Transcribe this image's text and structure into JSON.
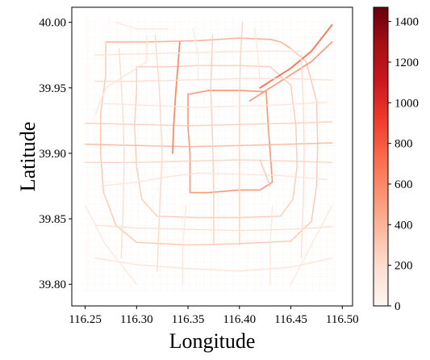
{
  "chart_data": {
    "type": "map",
    "title": "",
    "xlabel": "Longitude",
    "ylabel": "Latitude",
    "xlim": [
      116.237,
      116.51
    ],
    "ylim": [
      39.7835,
      40.0115
    ],
    "xticks": [
      116.25,
      116.3,
      116.35,
      116.4,
      116.45,
      116.5
    ],
    "xtick_labels": [
      "116.25",
      "116.30",
      "116.35",
      "116.40",
      "116.45",
      "116.50"
    ],
    "yticks": [
      39.8,
      39.85,
      39.9,
      39.95,
      40.0
    ],
    "ytick_labels": [
      "39.80",
      "39.85",
      "39.90",
      "39.95",
      "40.00"
    ],
    "colorbar": {
      "cmap": "Reds",
      "vmin": 0,
      "vmax": 1470,
      "ticks": [
        0,
        200,
        400,
        600,
        800,
        1000,
        1200,
        1400
      ],
      "tick_labels": [
        "0",
        "200",
        "400",
        "600",
        "800",
        "1000",
        "1200",
        "1400"
      ]
    },
    "roads": [
      {
        "value": 420,
        "points": [
          [
            116.27,
            39.985
          ],
          [
            116.31,
            39.985
          ],
          [
            116.36,
            39.986
          ],
          [
            116.4,
            39.988
          ],
          [
            116.43,
            39.987
          ]
        ]
      },
      {
        "value": 420,
        "points": [
          [
            116.43,
            39.987
          ],
          [
            116.44,
            39.985
          ],
          [
            116.45,
            39.98
          ]
        ]
      },
      {
        "value": 300,
        "points": [
          [
            116.27,
            39.985
          ],
          [
            116.27,
            39.96
          ],
          [
            116.265,
            39.93
          ],
          [
            116.265,
            39.9
          ],
          [
            116.268,
            39.87
          ],
          [
            116.28,
            39.845
          ],
          [
            116.3,
            39.832
          ],
          [
            116.35,
            39.83
          ],
          [
            116.4,
            39.831
          ],
          [
            116.45,
            39.833
          ],
          [
            116.47,
            39.848
          ],
          [
            116.475,
            39.875
          ],
          [
            116.476,
            39.907
          ],
          [
            116.475,
            39.94
          ],
          [
            116.465,
            39.97
          ],
          [
            116.45,
            39.98
          ]
        ]
      },
      {
        "value": 280,
        "points": [
          [
            116.3,
            39.966
          ],
          [
            116.33,
            39.966
          ],
          [
            116.36,
            39.967
          ],
          [
            116.4,
            39.967
          ],
          [
            116.43,
            39.966
          ],
          [
            116.45,
            39.952
          ],
          [
            116.455,
            39.92
          ],
          [
            116.456,
            39.89
          ],
          [
            116.452,
            39.865
          ],
          [
            116.44,
            39.852
          ],
          [
            116.4,
            39.851
          ],
          [
            116.36,
            39.851
          ],
          [
            116.32,
            39.852
          ],
          [
            116.305,
            39.865
          ],
          [
            116.3,
            39.89
          ],
          [
            116.298,
            39.92
          ],
          [
            116.3,
            39.95
          ],
          [
            116.3,
            39.966
          ]
        ]
      },
      {
        "value": 520,
        "points": [
          [
            116.35,
            39.945
          ],
          [
            116.37,
            39.948
          ],
          [
            116.4,
            39.948
          ],
          [
            116.426,
            39.947
          ],
          [
            116.428,
            39.92
          ],
          [
            116.43,
            39.9
          ],
          [
            116.432,
            39.878
          ],
          [
            116.42,
            39.872
          ],
          [
            116.4,
            39.872
          ],
          [
            116.37,
            39.87
          ],
          [
            116.352,
            39.87
          ],
          [
            116.352,
            39.9
          ],
          [
            116.35,
            39.92
          ],
          [
            116.35,
            39.945
          ]
        ]
      },
      {
        "value": 360,
        "points": [
          [
            116.25,
            39.907
          ],
          [
            116.3,
            39.906
          ],
          [
            116.35,
            39.905
          ],
          [
            116.4,
            39.906
          ],
          [
            116.45,
            39.907
          ],
          [
            116.49,
            39.908
          ]
        ]
      },
      {
        "value": 260,
        "points": [
          [
            116.25,
            39.923
          ],
          [
            116.3,
            39.922
          ],
          [
            116.35,
            39.921
          ],
          [
            116.4,
            39.922
          ],
          [
            116.45,
            39.923
          ],
          [
            116.49,
            39.924
          ]
        ]
      },
      {
        "value": 240,
        "points": [
          [
            116.25,
            39.893
          ],
          [
            116.3,
            39.893
          ],
          [
            116.35,
            39.894
          ],
          [
            116.4,
            39.895
          ],
          [
            116.45,
            39.894
          ],
          [
            116.49,
            39.893
          ]
        ]
      },
      {
        "value": 700,
        "points": [
          [
            116.42,
            39.95
          ],
          [
            116.45,
            39.965
          ],
          [
            116.47,
            39.978
          ],
          [
            116.49,
            39.998
          ]
        ]
      },
      {
        "value": 520,
        "points": [
          [
            116.41,
            39.94
          ],
          [
            116.44,
            39.955
          ],
          [
            116.47,
            39.97
          ],
          [
            116.49,
            39.985
          ]
        ]
      },
      {
        "value": 600,
        "points": [
          [
            116.335,
            39.9
          ],
          [
            116.336,
            39.92
          ],
          [
            116.338,
            39.945
          ],
          [
            116.34,
            39.965
          ],
          [
            116.342,
            39.985
          ]
        ]
      },
      {
        "value": 240,
        "points": [
          [
            116.4,
            39.83
          ],
          [
            116.4,
            39.86
          ],
          [
            116.4,
            39.9
          ],
          [
            116.4,
            39.94
          ],
          [
            116.401,
            39.975
          ],
          [
            116.403,
            40.0
          ]
        ]
      },
      {
        "value": 260,
        "points": [
          [
            116.375,
            39.83
          ],
          [
            116.375,
            39.87
          ],
          [
            116.374,
            39.91
          ],
          [
            116.372,
            39.95
          ],
          [
            116.374,
            39.99
          ]
        ]
      },
      {
        "value": 220,
        "points": [
          [
            116.32,
            39.81
          ],
          [
            116.322,
            39.85
          ],
          [
            116.325,
            39.9
          ],
          [
            116.322,
            39.95
          ],
          [
            116.318,
            39.99
          ]
        ]
      },
      {
        "value": 200,
        "points": [
          [
            116.285,
            39.82
          ],
          [
            116.287,
            39.86
          ],
          [
            116.288,
            39.9
          ],
          [
            116.286,
            39.94
          ],
          [
            116.283,
            39.98
          ]
        ]
      },
      {
        "value": 200,
        "points": [
          [
            116.46,
            39.82
          ],
          [
            116.462,
            39.86
          ],
          [
            116.463,
            39.9
          ],
          [
            116.462,
            39.94
          ],
          [
            116.46,
            39.975
          ]
        ]
      },
      {
        "value": 180,
        "points": [
          [
            116.26,
            39.845
          ],
          [
            116.3,
            39.843
          ],
          [
            116.35,
            39.842
          ],
          [
            116.4,
            39.841
          ],
          [
            116.45,
            39.842
          ],
          [
            116.49,
            39.844
          ]
        ]
      },
      {
        "value": 180,
        "points": [
          [
            116.26,
            39.955
          ],
          [
            116.3,
            39.955
          ],
          [
            116.35,
            39.956
          ],
          [
            116.4,
            39.957
          ],
          [
            116.45,
            39.957
          ],
          [
            116.49,
            39.956
          ]
        ]
      },
      {
        "value": 160,
        "points": [
          [
            116.26,
            39.975
          ],
          [
            116.31,
            39.976
          ],
          [
            116.36,
            39.977
          ],
          [
            116.41,
            39.978
          ],
          [
            116.46,
            39.978
          ]
        ]
      },
      {
        "value": 150,
        "points": [
          [
            116.26,
            39.82
          ],
          [
            116.3,
            39.815
          ],
          [
            116.35,
            39.812
          ],
          [
            116.4,
            39.81
          ],
          [
            116.45,
            39.813
          ],
          [
            116.49,
            39.82
          ]
        ]
      },
      {
        "value": 150,
        "points": [
          [
            116.31,
            39.99
          ],
          [
            116.31,
            39.97
          ],
          [
            116.27,
            39.95
          ],
          [
            116.26,
            39.93
          ]
        ]
      },
      {
        "value": 140,
        "points": [
          [
            116.265,
            39.875
          ],
          [
            116.3,
            39.878
          ],
          [
            116.33,
            39.882
          ],
          [
            116.36,
            39.885
          ],
          [
            116.4,
            39.884
          ],
          [
            116.44,
            39.883
          ],
          [
            116.485,
            39.88
          ]
        ]
      },
      {
        "value": 140,
        "points": [
          [
            116.265,
            39.938
          ],
          [
            116.3,
            39.937
          ],
          [
            116.33,
            39.936
          ],
          [
            116.36,
            39.935
          ],
          [
            116.4,
            39.936
          ],
          [
            116.44,
            39.937
          ],
          [
            116.485,
            39.939
          ]
        ]
      },
      {
        "value": 300,
        "points": [
          [
            116.42,
            39.895
          ],
          [
            116.425,
            39.885
          ],
          [
            116.43,
            39.875
          ]
        ]
      },
      {
        "value": 130,
        "points": [
          [
            116.25,
            39.86
          ],
          [
            116.27,
            39.83
          ],
          [
            116.3,
            39.8
          ]
        ]
      },
      {
        "value": 130,
        "points": [
          [
            116.49,
            39.86
          ],
          [
            116.47,
            39.83
          ],
          [
            116.45,
            39.8
          ]
        ]
      },
      {
        "value": 120,
        "points": [
          [
            116.345,
            39.8
          ],
          [
            116.345,
            39.83
          ],
          [
            116.348,
            39.86
          ]
        ]
      },
      {
        "value": 120,
        "points": [
          [
            116.43,
            39.8
          ],
          [
            116.43,
            39.83
          ],
          [
            116.432,
            39.86
          ]
        ]
      },
      {
        "value": 120,
        "points": [
          [
            116.28,
            40.0
          ],
          [
            116.3,
            39.995
          ],
          [
            116.33,
            39.995
          ]
        ]
      },
      {
        "value": 110,
        "points": [
          [
            116.355,
            39.995
          ],
          [
            116.36,
            39.975
          ],
          [
            116.36,
            39.955
          ]
        ]
      },
      {
        "value": 110,
        "points": [
          [
            116.415,
            39.995
          ],
          [
            116.418,
            39.975
          ],
          [
            116.42,
            39.955
          ]
        ]
      }
    ]
  }
}
